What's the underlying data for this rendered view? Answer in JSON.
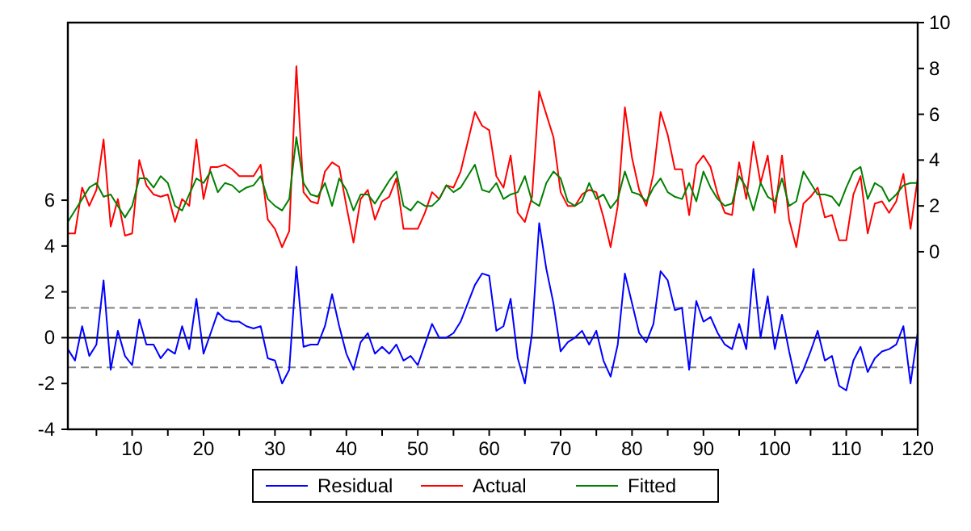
{
  "chart_data": {
    "type": "line",
    "x": [
      1,
      2,
      3,
      4,
      5,
      6,
      7,
      8,
      9,
      10,
      11,
      12,
      13,
      14,
      15,
      16,
      17,
      18,
      19,
      20,
      21,
      22,
      23,
      24,
      25,
      26,
      27,
      28,
      29,
      30,
      31,
      32,
      33,
      34,
      35,
      36,
      37,
      38,
      39,
      40,
      41,
      42,
      43,
      44,
      45,
      46,
      47,
      48,
      49,
      50,
      51,
      52,
      53,
      54,
      55,
      56,
      57,
      58,
      59,
      60,
      61,
      62,
      63,
      64,
      65,
      66,
      67,
      68,
      69,
      70,
      71,
      72,
      73,
      74,
      75,
      76,
      77,
      78,
      79,
      80,
      81,
      82,
      83,
      84,
      85,
      86,
      87,
      88,
      89,
      90,
      91,
      92,
      93,
      94,
      95,
      96,
      97,
      98,
      99,
      100,
      101,
      102,
      103,
      104,
      105,
      106,
      107,
      108,
      109,
      110,
      111,
      112,
      113,
      114,
      115,
      116,
      117,
      118,
      119,
      120
    ],
    "series": [
      {
        "name": "Residual",
        "color": "#0000ff",
        "values": [
          -0.5,
          -1.0,
          0.5,
          -0.8,
          -0.3,
          2.5,
          -1.4,
          0.3,
          -0.8,
          -1.2,
          0.8,
          -0.3,
          -0.3,
          -0.9,
          -0.5,
          -0.7,
          0.5,
          -0.5,
          1.7,
          -0.7,
          0.2,
          1.1,
          0.8,
          0.7,
          0.7,
          0.5,
          0.4,
          0.5,
          -0.9,
          -1.0,
          -2.0,
          -1.4,
          3.1,
          -0.4,
          -0.3,
          -0.3,
          0.5,
          1.9,
          0.5,
          -0.7,
          -1.4,
          -0.2,
          0.2,
          -0.7,
          -0.4,
          -0.7,
          -0.3,
          -1.0,
          -0.8,
          -1.2,
          -0.3,
          0.6,
          0.0,
          0.0,
          0.2,
          0.7,
          1.5,
          2.3,
          2.8,
          2.7,
          0.3,
          0.5,
          1.7,
          -0.9,
          -2.0,
          0.2,
          5.0,
          3.0,
          1.5,
          -0.6,
          -0.2,
          0.0,
          0.3,
          -0.3,
          0.3,
          -1.0,
          -1.7,
          -0.3,
          2.8,
          1.5,
          0.2,
          -0.2,
          0.6,
          2.9,
          2.5,
          1.2,
          1.3,
          -1.4,
          1.6,
          0.7,
          0.9,
          0.2,
          -0.3,
          -0.5,
          0.6,
          -0.5,
          3.0,
          0.0,
          1.8,
          -0.5,
          1.0,
          -0.6,
          -2.0,
          -1.4,
          -0.6,
          0.3,
          -1.0,
          -0.8,
          -2.1,
          -2.3,
          -1.0,
          -0.4,
          -1.5,
          -0.9,
          -0.6,
          -0.5,
          -0.3,
          0.5,
          -2.0,
          0.2
        ]
      },
      {
        "name": "Actual",
        "color": "#ff0000",
        "axis": "y2",
        "values": [
          0.8,
          0.8,
          2.8,
          2.0,
          2.7,
          4.9,
          1.1,
          2.3,
          0.7,
          0.8,
          4.0,
          2.9,
          2.5,
          2.4,
          2.5,
          1.3,
          2.3,
          2.0,
          4.9,
          2.3,
          3.7,
          3.7,
          3.8,
          3.6,
          3.3,
          3.3,
          3.3,
          3.8,
          1.4,
          1.0,
          0.2,
          0.9,
          8.1,
          2.6,
          2.2,
          2.1,
          3.5,
          3.9,
          3.7,
          2.0,
          0.4,
          2.3,
          2.7,
          1.4,
          2.2,
          2.4,
          3.2,
          1.0,
          1.0,
          1.0,
          1.7,
          2.6,
          2.3,
          2.9,
          2.8,
          3.5,
          4.8,
          6.1,
          5.5,
          5.3,
          3.3,
          2.8,
          4.2,
          1.7,
          1.3,
          2.4,
          7.0,
          6.0,
          5.0,
          2.6,
          2.0,
          2.0,
          2.5,
          2.7,
          2.6,
          1.5,
          0.2,
          2.0,
          6.3,
          4.1,
          2.7,
          2.0,
          3.4,
          6.1,
          5.1,
          3.6,
          3.6,
          1.6,
          3.8,
          4.2,
          3.7,
          2.5,
          1.7,
          1.6,
          3.9,
          2.3,
          4.8,
          3.0,
          4.2,
          1.7,
          4.2,
          1.4,
          0.2,
          2.1,
          2.4,
          2.8,
          1.5,
          1.6,
          0.5,
          0.5,
          2.5,
          3.3,
          0.8,
          2.1,
          2.2,
          1.7,
          2.2,
          3.4,
          1.0,
          3.2
        ]
      },
      {
        "name": "Fitted",
        "color": "#008000",
        "axis": "y2",
        "values": [
          1.3,
          1.8,
          2.3,
          2.8,
          3.0,
          2.4,
          2.5,
          2.0,
          1.5,
          2.0,
          3.2,
          3.2,
          2.8,
          3.3,
          3.0,
          2.0,
          1.8,
          2.5,
          3.2,
          3.0,
          3.5,
          2.6,
          3.0,
          2.9,
          2.6,
          2.8,
          2.9,
          3.3,
          2.3,
          2.0,
          1.8,
          2.3,
          5.0,
          3.0,
          2.5,
          2.4,
          3.0,
          2.0,
          3.2,
          2.7,
          1.8,
          2.5,
          2.5,
          2.1,
          2.6,
          3.1,
          3.5,
          2.0,
          1.8,
          2.2,
          2.0,
          2.0,
          2.3,
          2.9,
          2.6,
          2.8,
          3.3,
          3.8,
          2.7,
          2.6,
          3.0,
          2.3,
          2.5,
          2.6,
          3.3,
          2.2,
          2.0,
          3.0,
          3.5,
          3.2,
          2.2,
          2.0,
          2.2,
          3.0,
          2.3,
          2.5,
          1.9,
          2.3,
          3.5,
          2.6,
          2.5,
          2.2,
          2.8,
          3.2,
          2.6,
          2.4,
          2.3,
          3.0,
          2.2,
          3.5,
          2.8,
          2.3,
          2.0,
          2.1,
          3.3,
          2.8,
          1.8,
          3.0,
          2.4,
          2.2,
          3.2,
          2.0,
          2.2,
          3.5,
          3.0,
          2.5,
          2.5,
          2.4,
          2.0,
          2.8,
          3.5,
          3.7,
          2.3,
          3.0,
          2.8,
          2.2,
          2.5,
          2.9,
          3.0,
          3.0
        ]
      }
    ],
    "xlim": [
      1,
      120
    ],
    "xticks": [
      {
        "value": 5,
        "label": null
      },
      10,
      {
        "value": 15,
        "label": null
      },
      20,
      {
        "value": 25,
        "label": null
      },
      30,
      {
        "value": 35,
        "label": null
      },
      40,
      {
        "value": 45,
        "label": null
      },
      50,
      {
        "value": 55,
        "label": null
      },
      60,
      {
        "value": 65,
        "label": null
      },
      70,
      {
        "value": 75,
        "label": null
      },
      80,
      {
        "value": 85,
        "label": null
      },
      90,
      {
        "value": 95,
        "label": null
      },
      100,
      {
        "value": 105,
        "label": null
      },
      110,
      {
        "value": 115,
        "label": null
      },
      120
    ],
    "ylim": [
      -4,
      13.75
    ],
    "yticks": [
      -4,
      -2,
      0,
      2,
      4,
      6
    ],
    "y2lim": [
      -7.75,
      10
    ],
    "y2ticks": [
      0,
      2,
      4,
      6,
      8,
      10
    ],
    "ref_lines": [
      {
        "axis": "y",
        "value": 0,
        "color": "#000000",
        "line_style": "solid"
      },
      {
        "axis": "y",
        "value": 1.3,
        "color": "#808080",
        "line_style": "dashed"
      },
      {
        "axis": "y",
        "value": -1.3,
        "color": "#808080",
        "line_style": "dashed"
      }
    ],
    "grid": false,
    "legend": "bottom",
    "line_style": "solid",
    "marker": "none"
  }
}
